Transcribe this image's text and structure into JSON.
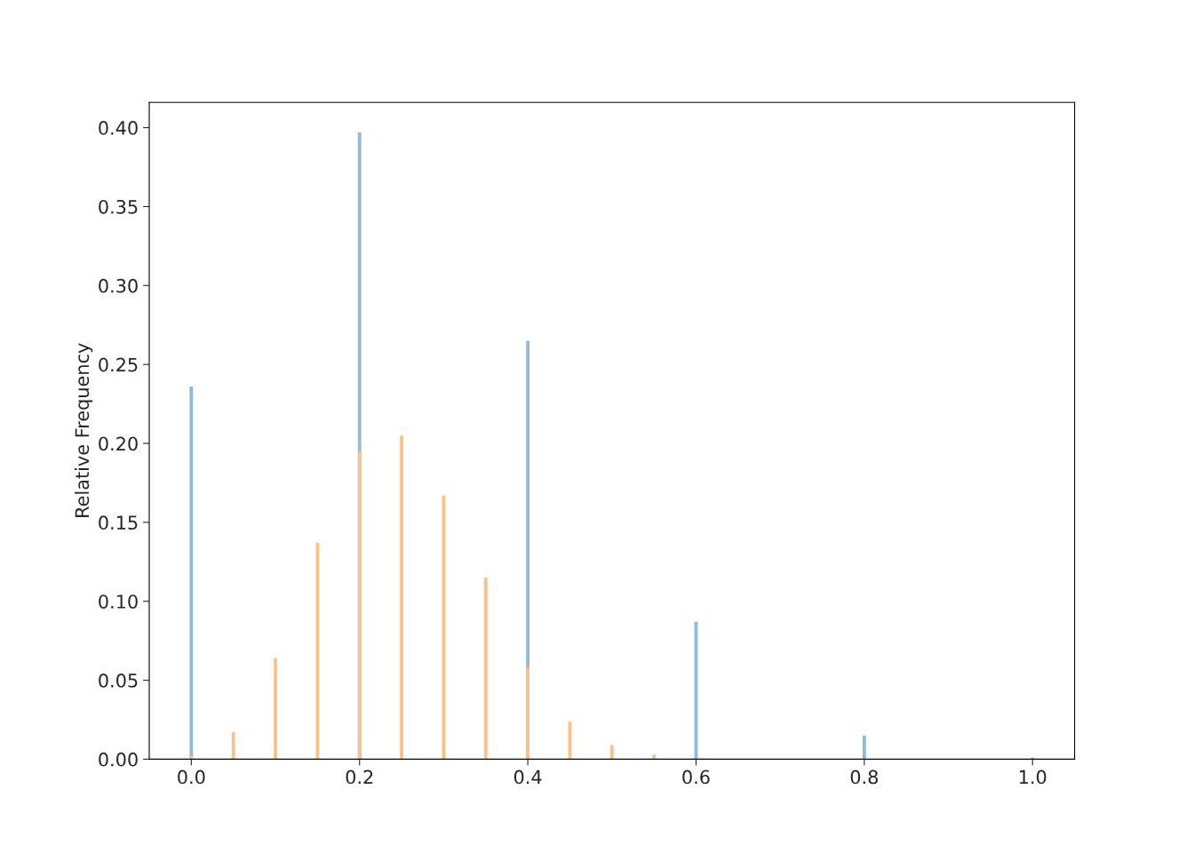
{
  "chart_data": {
    "type": "bar",
    "ylabel": "Relative Frequency",
    "series": [
      {
        "color": "#8fbbd9",
        "x": [
          0.0,
          0.2,
          0.4,
          0.6,
          0.8,
          1.0
        ],
        "values": [
          0.236,
          0.397,
          0.265,
          0.087,
          0.015,
          0.001
        ]
      },
      {
        "color": "#ffbf86",
        "x": [
          0.0,
          0.05,
          0.1,
          0.15,
          0.2,
          0.25,
          0.3,
          0.35,
          0.4,
          0.45,
          0.5,
          0.55
        ],
        "values": [
          0.002,
          0.017,
          0.064,
          0.137,
          0.195,
          0.205,
          0.167,
          0.115,
          0.058,
          0.024,
          0.009,
          0.003
        ]
      }
    ],
    "xlim": [
      -0.05,
      1.05
    ],
    "xticks": [
      {
        "value": 0.0,
        "label": "0.0"
      },
      {
        "value": 0.2,
        "label": "0.2"
      },
      {
        "value": 0.4,
        "label": "0.4"
      },
      {
        "value": 0.6,
        "label": "0.6"
      },
      {
        "value": 0.8,
        "label": "0.8"
      },
      {
        "value": 1.0,
        "label": "1.0"
      }
    ],
    "ylim": [
      0,
      0.416
    ],
    "yticks": [
      {
        "value": 0.0,
        "label": "0.00"
      },
      {
        "value": 0.05,
        "label": "0.05"
      },
      {
        "value": 0.1,
        "label": "0.10"
      },
      {
        "value": 0.15,
        "label": "0.15"
      },
      {
        "value": 0.2,
        "label": "0.20"
      },
      {
        "value": 0.25,
        "label": "0.25"
      },
      {
        "value": 0.3,
        "label": "0.30"
      },
      {
        "value": 0.35,
        "label": "0.35"
      },
      {
        "value": 0.4,
        "label": "0.40"
      }
    ],
    "grid": false
  }
}
